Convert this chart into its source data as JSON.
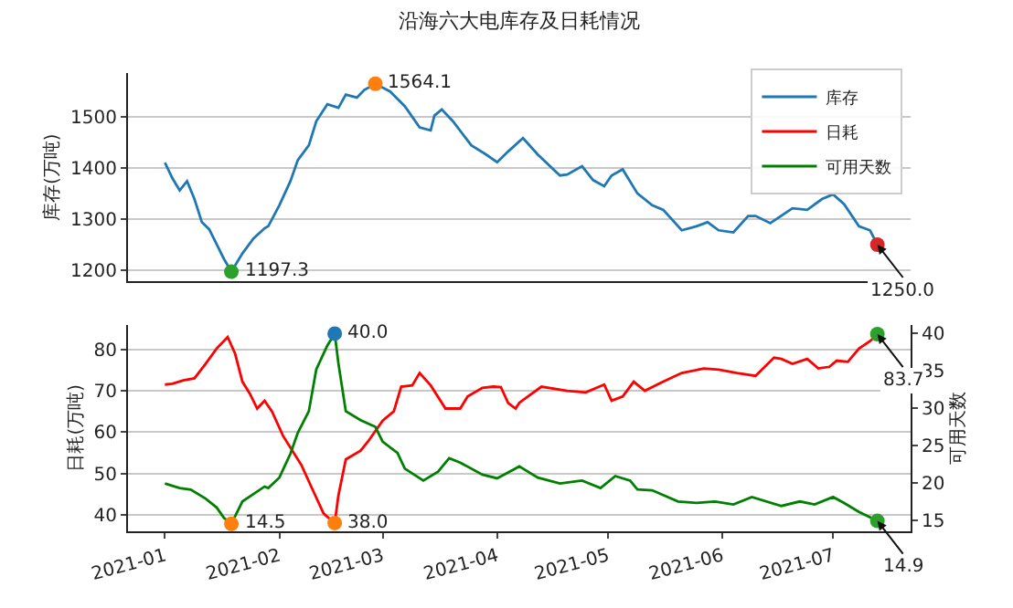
{
  "chart_data": [
    {
      "type": "line",
      "title": "沿海六大电库存及日耗情况",
      "ylabel": "库存(万吨)",
      "xlim": [
        "2020-12-22",
        "2021-07-22"
      ],
      "ylim": [
        1178,
        1585
      ],
      "yticks": [
        1200,
        1300,
        1400,
        1500
      ],
      "grid": "y",
      "legend": "top right",
      "tick_labels": "y",
      "marker": "none",
      "line_style": "solid",
      "series": [
        {
          "name": "库存",
          "color": "#1f77b4",
          "x": [
            "2021-01-01",
            "2021-01-03",
            "2021-01-05",
            "2021-01-07",
            "2021-01-09",
            "2021-01-11",
            "2021-01-13",
            "2021-01-15",
            "2021-01-17",
            "2021-01-19",
            "2021-01-22",
            "2021-01-25",
            "2021-01-28",
            "2021-01-29",
            "2021-02-01",
            "2021-02-04",
            "2021-02-06",
            "2021-02-09",
            "2021-02-11",
            "2021-02-14",
            "2021-02-17",
            "2021-02-19",
            "2021-02-22",
            "2021-02-24",
            "2021-02-27",
            "2021-03-03",
            "2021-03-07",
            "2021-03-11",
            "2021-03-14",
            "2021-03-15",
            "2021-03-17",
            "2021-03-20",
            "2021-03-25",
            "2021-03-29",
            "2021-04-01",
            "2021-04-04",
            "2021-04-08",
            "2021-04-12",
            "2021-04-18",
            "2021-04-20",
            "2021-04-24",
            "2021-04-27",
            "2021-04-30",
            "2021-05-02",
            "2021-05-05",
            "2021-05-09",
            "2021-05-13",
            "2021-05-16",
            "2021-05-21",
            "2021-05-25",
            "2021-05-28",
            "2021-05-31",
            "2021-06-04",
            "2021-06-08",
            "2021-06-10",
            "2021-06-14",
            "2021-06-20",
            "2021-06-24",
            "2021-06-28",
            "2021-07-01",
            "2021-07-04",
            "2021-07-08",
            "2021-07-11",
            "2021-07-13"
          ],
          "values": [
            1410,
            1380,
            1356,
            1374,
            1339,
            1294,
            1280,
            1251,
            1222,
            1197.3,
            1233,
            1262,
            1282,
            1286,
            1327,
            1374,
            1415,
            1444,
            1491,
            1524,
            1517,
            1543,
            1537,
            1552,
            1564.1,
            1549,
            1520,
            1479,
            1473,
            1502,
            1514,
            1491,
            1444,
            1426,
            1411,
            1432,
            1458,
            1426,
            1385,
            1387,
            1403,
            1376,
            1364,
            1385,
            1397,
            1350,
            1327,
            1318,
            1278,
            1286,
            1294,
            1278,
            1274,
            1306,
            1306,
            1292,
            1321,
            1318,
            1339,
            1348,
            1329,
            1286,
            1278,
            1250.0
          ]
        },
        {
          "type": "scatter",
          "marker": "circle",
          "color": "#ff7f0e",
          "x": [
            "2021-02-27"
          ],
          "values": [
            1564.1
          ],
          "value_labels": [
            "1564.1"
          ]
        },
        {
          "type": "scatter",
          "marker": "circle",
          "color": "#2ca02c",
          "x": [
            "2021-01-19"
          ],
          "values": [
            1197.3
          ],
          "value_labels": [
            "1197.3"
          ]
        },
        {
          "type": "scatter",
          "marker": "circle",
          "color": "#d62728",
          "x": [
            "2021-07-13"
          ],
          "values": [
            1250.0
          ],
          "value_labels": [
            "1250.0"
          ]
        }
      ]
    },
    {
      "type": "line",
      "ylabel": "日耗(万吨)",
      "y2label": "可用天数",
      "xlim": [
        "2020-12-22",
        "2021-07-22"
      ],
      "ylim": [
        36,
        86
      ],
      "yticks": [
        40,
        50,
        60,
        70,
        80
      ],
      "y2lim": [
        13.5,
        41.2
      ],
      "y2ticks": [
        15,
        20,
        25,
        30,
        35,
        40
      ],
      "legend": "top right",
      "xticks": [
        {
          "value": "2021-01-01",
          "label": "2021-01"
        },
        {
          "value": "2021-02-01",
          "label": "2021-02"
        },
        {
          "value": "2021-03-01",
          "label": "2021-03"
        },
        {
          "value": "2021-04-01",
          "label": "2021-04"
        },
        {
          "value": "2021-05-01",
          "label": "2021-05"
        },
        {
          "value": "2021-06-01",
          "label": "2021-06"
        },
        {
          "value": "2021-07-01",
          "label": "2021-07"
        }
      ],
      "grid": "y",
      "marker": "none",
      "line_style": "solid",
      "series": [
        {
          "name": "日耗",
          "color": "#ff0000",
          "x": [
            "2021-01-01",
            "2021-01-03",
            "2021-01-06",
            "2021-01-09",
            "2021-01-12",
            "2021-01-15",
            "2021-01-18",
            "2021-01-20",
            "2021-01-22",
            "2021-01-24",
            "2021-01-26",
            "2021-01-28",
            "2021-01-30",
            "2021-02-02",
            "2021-02-07",
            "2021-02-10",
            "2021-02-13",
            "2021-02-16",
            "2021-02-17",
            "2021-02-19",
            "2021-02-23",
            "2021-02-25",
            "2021-03-01",
            "2021-03-04",
            "2021-03-06",
            "2021-03-09",
            "2021-03-11",
            "2021-03-14",
            "2021-03-18",
            "2021-03-22",
            "2021-03-24",
            "2021-03-28",
            "2021-03-31",
            "2021-04-02",
            "2021-04-04",
            "2021-04-06",
            "2021-04-07",
            "2021-04-13",
            "2021-04-20",
            "2021-04-25",
            "2021-04-30",
            "2021-05-02",
            "2021-05-05",
            "2021-05-08",
            "2021-05-11",
            "2021-05-16",
            "2021-05-21",
            "2021-05-27",
            "2021-05-31",
            "2021-06-05",
            "2021-06-10",
            "2021-06-15",
            "2021-06-17",
            "2021-06-20",
            "2021-06-24",
            "2021-06-27",
            "2021-06-30",
            "2021-07-02",
            "2021-07-05",
            "2021-07-08",
            "2021-07-11",
            "2021-07-13"
          ],
          "values": [
            71.5,
            71.7,
            72.5,
            73,
            76.5,
            80.2,
            83.0,
            79,
            72.2,
            69.3,
            65.7,
            67.6,
            65,
            59.1,
            52,
            46.1,
            40.3,
            38.0,
            44.7,
            53.4,
            55.5,
            57.7,
            62.8,
            65,
            71,
            71.3,
            74.3,
            71.3,
            65.7,
            65.7,
            68.6,
            70.7,
            71,
            70.9,
            67,
            65.7,
            67.1,
            71,
            70,
            69.6,
            71.5,
            67.6,
            68.6,
            72.2,
            70,
            72.2,
            74.3,
            75.4,
            75.1,
            74.3,
            73.6,
            78,
            77.7,
            76.5,
            77.7,
            75.4,
            75.8,
            77.3,
            77,
            80.2,
            82,
            83.7
          ]
        },
        {
          "name": "可用天数",
          "color": "#008000",
          "axis": "y2",
          "x": [
            "2021-01-01",
            "2021-01-05",
            "2021-01-08",
            "2021-01-12",
            "2021-01-15",
            "2021-01-17",
            "2021-01-19",
            "2021-01-22",
            "2021-01-25",
            "2021-01-28",
            "2021-01-29",
            "2021-02-01",
            "2021-02-04",
            "2021-02-06",
            "2021-02-09",
            "2021-02-11",
            "2021-02-14",
            "2021-02-16",
            "2021-02-17",
            "2021-02-19",
            "2021-02-23",
            "2021-02-27",
            "2021-03-01",
            "2021-03-05",
            "2021-03-07",
            "2021-03-12",
            "2021-03-16",
            "2021-03-19",
            "2021-03-22",
            "2021-03-28",
            "2021-04-01",
            "2021-04-04",
            "2021-04-07",
            "2021-04-12",
            "2021-04-18",
            "2021-04-24",
            "2021-04-29",
            "2021-05-03",
            "2021-05-07",
            "2021-05-09",
            "2021-05-13",
            "2021-05-20",
            "2021-05-25",
            "2021-05-30",
            "2021-06-04",
            "2021-06-09",
            "2021-06-17",
            "2021-06-22",
            "2021-06-26",
            "2021-07-01",
            "2021-07-04",
            "2021-07-08",
            "2021-07-13"
          ],
          "values": [
            19.9,
            19.3,
            19.1,
            17.9,
            16.7,
            15.3,
            14.5,
            17.5,
            18.5,
            19.5,
            19.3,
            20.7,
            23.9,
            26.7,
            29.6,
            35.2,
            38.4,
            40.0,
            36.0,
            29.6,
            28.4,
            27.5,
            25.5,
            24,
            21.9,
            20.3,
            21.5,
            23.3,
            22.7,
            21.1,
            20.6,
            21.4,
            22.2,
            20.7,
            19.9,
            20.3,
            19.3,
            20.9,
            20.3,
            19.1,
            19.0,
            17.5,
            17.3,
            17.5,
            17.1,
            18.1,
            16.9,
            17.5,
            17.1,
            18.1,
            17.3,
            16.1,
            14.9
          ]
        },
        {
          "type": "scatter",
          "marker": "circle",
          "color": "#ff7f0e",
          "x": [
            "2021-02-16"
          ],
          "values": [
            38.0
          ],
          "value_labels": [
            "38.0"
          ]
        },
        {
          "type": "scatter",
          "marker": "circle",
          "color": "#2ca02c",
          "x": [
            "2021-07-13"
          ],
          "values": [
            83.7
          ],
          "value_labels": [
            "83.7"
          ]
        },
        {
          "type": "scatter",
          "marker": "circle",
          "color": "#ff7f0e",
          "axis": "y2",
          "x": [
            "2021-01-19"
          ],
          "values": [
            14.5
          ],
          "value_labels": [
            "14.5"
          ]
        },
        {
          "type": "scatter",
          "marker": "circle",
          "color": "#1f77b4",
          "axis": "y2",
          "x": [
            "2021-02-16"
          ],
          "values": [
            40.0
          ],
          "value_labels": [
            "40.0"
          ]
        },
        {
          "type": "scatter",
          "marker": "circle",
          "color": "#2ca02c",
          "axis": "y2",
          "x": [
            "2021-07-13"
          ],
          "values": [
            14.9
          ],
          "value_labels": [
            "14.9"
          ]
        }
      ]
    }
  ]
}
